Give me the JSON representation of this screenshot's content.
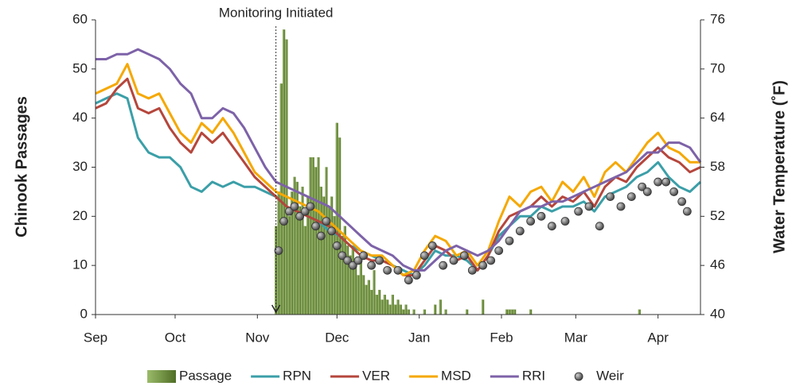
{
  "chart_data": {
    "type": "line",
    "annotation": {
      "text": "Monitoring Initiated",
      "x": 68
    },
    "ylabel": "Chinook Passages",
    "y2label": "Water Temperature (˚F)",
    "xlim": [
      0,
      228
    ],
    "xticks": [
      {
        "value": 0,
        "label": "Sep"
      },
      {
        "value": 30,
        "label": "Oct"
      },
      {
        "value": 61,
        "label": "Nov"
      },
      {
        "value": 91,
        "label": "Dec"
      },
      {
        "value": 122,
        "label": "Jan"
      },
      {
        "value": 153,
        "label": "Feb"
      },
      {
        "value": 181,
        "label": "Mar"
      },
      {
        "value": 212,
        "label": "Apr"
      }
    ],
    "ylim": [
      0,
      60
    ],
    "yticks": [
      0,
      10,
      20,
      30,
      40,
      50,
      60
    ],
    "y2lim": [
      40,
      76
    ],
    "y2ticks": [
      40,
      46,
      52,
      58,
      64,
      70,
      76
    ],
    "x": [
      0,
      4,
      8,
      12,
      16,
      20,
      24,
      28,
      32,
      36,
      40,
      44,
      48,
      52,
      56,
      60,
      64,
      68,
      72,
      76,
      80,
      84,
      88,
      92,
      96,
      100,
      104,
      108,
      112,
      116,
      120,
      124,
      128,
      132,
      136,
      140,
      144,
      148,
      152,
      156,
      160,
      164,
      168,
      172,
      176,
      180,
      184,
      188,
      192,
      196,
      200,
      204,
      208,
      212,
      216,
      220,
      224,
      228
    ],
    "series": [
      {
        "name": "Passage",
        "type": "bar",
        "color": "#6b8c3a",
        "x": [
          68,
          69,
          70,
          71,
          72,
          73,
          74,
          75,
          76,
          77,
          78,
          79,
          80,
          81,
          82,
          83,
          84,
          85,
          86,
          87,
          88,
          89,
          90,
          91,
          92,
          93,
          94,
          95,
          96,
          97,
          98,
          99,
          100,
          101,
          102,
          103,
          104,
          105,
          106,
          107,
          108,
          109,
          110,
          111,
          112,
          113,
          114,
          115,
          116,
          117,
          118,
          120,
          124,
          128,
          130,
          132,
          140,
          146,
          155,
          156,
          157,
          158,
          164,
          205
        ],
        "values": [
          18,
          25,
          47,
          58,
          56,
          20,
          25,
          28,
          27,
          22,
          26,
          18,
          24,
          32,
          32,
          30,
          32,
          26,
          24,
          30,
          22,
          24,
          20,
          39,
          36,
          16,
          18,
          14,
          12,
          14,
          10,
          8,
          12,
          8,
          6,
          7,
          5,
          9,
          4,
          5,
          3,
          4,
          3,
          2,
          4,
          2,
          3,
          2,
          1,
          2,
          1,
          1,
          1,
          2,
          3,
          1,
          1,
          3,
          1,
          1,
          1,
          1,
          1,
          1
        ]
      },
      {
        "name": "RPN",
        "type": "line",
        "axis": "y2",
        "color": "#3b9fa8",
        "values": [
          65.8,
          66.4,
          67,
          66.4,
          61.6,
          59.8,
          59.2,
          59.2,
          58,
          55.6,
          55,
          56.2,
          55.6,
          56.2,
          55.6,
          55.6,
          55,
          54.4,
          53.2,
          52.6,
          52,
          51.4,
          50.2,
          49.6,
          48.4,
          47.8,
          47.2,
          46.6,
          46,
          45.4,
          44.8,
          46,
          47.8,
          47.2,
          47.2,
          46.6,
          45.4,
          47.2,
          49.6,
          50.8,
          52,
          52,
          53.2,
          52.6,
          53.2,
          53.2,
          53.8,
          52.6,
          54.4,
          55,
          55.6,
          56.8,
          57.4,
          58.6,
          56.8,
          55.6,
          55,
          56.2
        ]
      },
      {
        "name": "VER",
        "type": "line",
        "axis": "y2",
        "color": "#b5463c",
        "values": [
          65.2,
          65.8,
          67.6,
          68.8,
          65.2,
          64.6,
          65.2,
          62.8,
          61,
          59.8,
          62.2,
          61,
          62.2,
          60.4,
          58.6,
          56.8,
          55.6,
          54.4,
          53.2,
          52.6,
          52,
          51.4,
          50.8,
          49.6,
          48.4,
          47.2,
          46.6,
          46.6,
          46,
          44.8,
          44.8,
          46.6,
          48.4,
          47.8,
          46.6,
          47.2,
          45.4,
          47.2,
          50.2,
          52,
          52.6,
          53.2,
          54.4,
          53.2,
          54.4,
          53.8,
          55,
          53.2,
          55.6,
          56.8,
          56.2,
          58,
          59.2,
          60.4,
          59.2,
          58.6,
          57.4,
          58
        ]
      },
      {
        "name": "MSD",
        "type": "line",
        "axis": "y2",
        "color": "#f5a800",
        "values": [
          67,
          67.6,
          68.2,
          70.6,
          67,
          66.4,
          67,
          64.6,
          62.2,
          61,
          63.4,
          62.2,
          64,
          62.2,
          59.8,
          57.4,
          56.2,
          55,
          54.4,
          53.8,
          53.2,
          52.6,
          51.4,
          50.2,
          49,
          47.8,
          47.2,
          47.2,
          46,
          44.8,
          45.4,
          47.8,
          49.6,
          49,
          47.2,
          47.8,
          46,
          47.8,
          51.4,
          54.4,
          53.2,
          55,
          55.6,
          53.8,
          56.2,
          55,
          56.8,
          54.4,
          57.4,
          58.6,
          57.4,
          59.2,
          61,
          62.2,
          60.4,
          59.8,
          58.6,
          58.6
        ]
      },
      {
        "name": "RRI",
        "type": "line",
        "axis": "y2",
        "color": "#7d62a8",
        "values": [
          71.2,
          71.2,
          71.8,
          71.8,
          72.4,
          71.8,
          71.2,
          70,
          68.2,
          67,
          64,
          64,
          65.2,
          64.6,
          62.8,
          60.4,
          58,
          56.2,
          55.6,
          55,
          54.4,
          53.8,
          53.2,
          52,
          50.8,
          49.6,
          48.4,
          47.8,
          47.2,
          46,
          45.4,
          45.4,
          46.6,
          47.8,
          48.4,
          47.8,
          47.2,
          47.8,
          49,
          50.8,
          52.6,
          53.2,
          53.2,
          53.8,
          53.8,
          54.4,
          55,
          55.6,
          56.2,
          56.8,
          57.4,
          58.6,
          59.8,
          59.8,
          61,
          61,
          60.4,
          58.6
        ]
      },
      {
        "name": "Weir",
        "type": "scatter",
        "axis": "y2",
        "color": "#6a6a6a",
        "x": [
          69,
          71,
          73,
          75,
          77,
          79,
          81,
          83,
          85,
          87,
          89,
          91,
          93,
          95,
          97,
          99,
          101,
          104,
          107,
          110,
          114,
          118,
          121,
          124,
          127,
          131,
          135,
          139,
          142,
          146,
          149,
          152,
          156,
          160,
          164,
          168,
          172,
          177,
          182,
          186,
          190,
          194,
          198,
          202,
          206,
          208,
          212,
          215,
          218,
          221,
          223
        ],
        "values": [
          47.8,
          51.4,
          52.6,
          53.2,
          52,
          52.6,
          53.2,
          50.8,
          49.6,
          51.4,
          50.2,
          48.4,
          47.2,
          46.6,
          46,
          46.6,
          47.2,
          46,
          46.6,
          45.4,
          45.4,
          44.2,
          44.8,
          47.2,
          48.4,
          46,
          46.6,
          47.2,
          45.4,
          46,
          46.6,
          47.8,
          49,
          50.2,
          51.4,
          52,
          50.8,
          51.4,
          52.6,
          53.2,
          50.8,
          54.4,
          53.2,
          54.4,
          55.6,
          55,
          56.2,
          56.2,
          55,
          53.8,
          52.6
        ]
      }
    ]
  }
}
